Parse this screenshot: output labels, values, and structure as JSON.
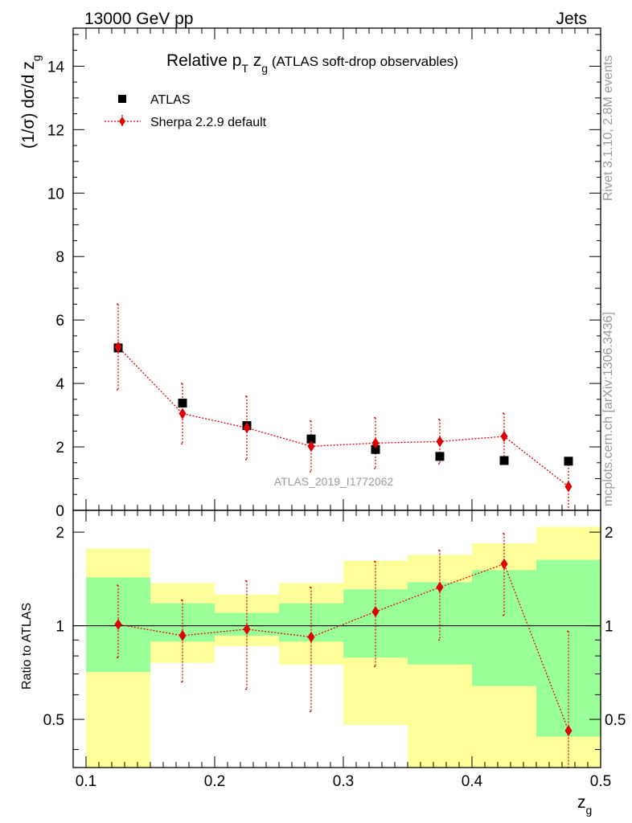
{
  "header": {
    "left": "13000 GeV pp",
    "right": "Jets"
  },
  "title": {
    "main": "Relative p",
    "sub1": "T",
    "mid": " z",
    "sub2": "g",
    "tail": " (ATLAS soft-drop observables)"
  },
  "side_labels": {
    "rivet": "Rivet 3.1.10,  2.8M events",
    "mcplots": "mcplots.cern.ch [arXiv:1306.3436]"
  },
  "watermark": "ATLAS_2019_I1772062",
  "axes": {
    "top_ylabel": "(1/σ) dσ/d z",
    "top_ylabel_sub": "g",
    "bottom_ylabel": "Ratio to ATLAS",
    "xlabel": "z",
    "xlabel_sub": "g"
  },
  "colors": {
    "data": "#000000",
    "mc": "#e00000",
    "band_outer": "#ffff99",
    "band_inner": "#99ff99"
  },
  "chart_data": {
    "type": "scatter",
    "x_edges": [
      0.1,
      0.15,
      0.2,
      0.25,
      0.3,
      0.35,
      0.4,
      0.45,
      0.5
    ],
    "x": [
      0.125,
      0.175,
      0.225,
      0.275,
      0.325,
      0.375,
      0.425,
      0.475
    ],
    "xlim": [
      0.09,
      0.5
    ],
    "xticks": [
      "0.1",
      "0.2",
      "0.3",
      "0.4",
      "0.5"
    ],
    "top": {
      "ylim": [
        0,
        15.2
      ],
      "yticks": [
        "0",
        "2",
        "4",
        "6",
        "8",
        "10",
        "12",
        "14"
      ],
      "legend": [
        "ATLAS",
        "Sherpa 2.2.9 default"
      ],
      "legend_position": "top-left",
      "series": [
        {
          "name": "ATLAS",
          "values": [
            5.12,
            3.38,
            2.67,
            2.25,
            1.92,
            1.7,
            1.57,
            1.55
          ]
        },
        {
          "name": "Sherpa 2.2.9 default",
          "values": [
            5.15,
            3.05,
            2.6,
            2.02,
            2.12,
            2.17,
            2.33,
            0.75
          ],
          "err_up": [
            1.35,
            0.95,
            1.0,
            0.8,
            0.8,
            0.7,
            0.73,
            0.9
          ],
          "err_down": [
            1.35,
            0.95,
            1.0,
            0.8,
            0.8,
            0.7,
            0.73,
            0.75
          ]
        }
      ]
    },
    "bottom": {
      "ylim": [
        0.35,
        2.35
      ],
      "yticks": [
        "0.5",
        "1",
        "2"
      ],
      "log": true,
      "ratio": [
        1.01,
        0.93,
        0.975,
        0.92,
        1.11,
        1.33,
        1.58,
        0.46
      ],
      "ratio_err_up": [
        0.34,
        0.28,
        0.42,
        0.41,
        0.5,
        0.42,
        0.4,
        0.5
      ],
      "ratio_err_down": [
        0.22,
        0.27,
        0.35,
        0.39,
        0.37,
        0.43,
        0.5,
        0.11
      ],
      "band_inner_lo": [
        0.71,
        0.89,
        0.93,
        0.89,
        0.79,
        0.75,
        0.64,
        0.44
      ],
      "band_inner_hi": [
        1.43,
        1.18,
        1.1,
        1.18,
        1.31,
        1.38,
        1.51,
        1.63
      ],
      "band_outer_lo": [
        0.35,
        0.76,
        0.86,
        0.75,
        0.48,
        0.35,
        0.35,
        0.35
      ],
      "band_outer_hi": [
        1.77,
        1.37,
        1.26,
        1.37,
        1.62,
        1.69,
        1.84,
        2.08
      ]
    }
  }
}
